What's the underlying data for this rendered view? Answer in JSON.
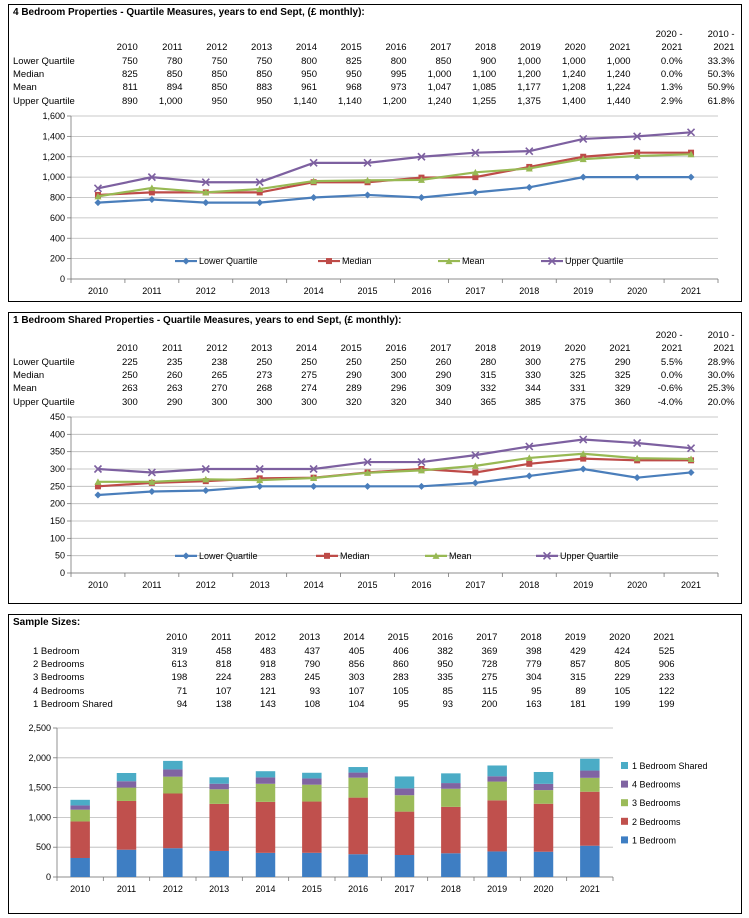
{
  "panel1": {
    "title": "4 Bedroom Properties - Quartile Measures, years to end Sept, (£ monthly):",
    "change_headers": [
      [
        "2020 -",
        "2021"
      ],
      [
        "2010 -",
        "2021"
      ]
    ],
    "years": [
      "2010",
      "2011",
      "2012",
      "2013",
      "2014",
      "2015",
      "2016",
      "2017",
      "2018",
      "2019",
      "2020",
      "2021"
    ],
    "rows": [
      {
        "label": "Lower Quartile",
        "values": [
          "750",
          "780",
          "750",
          "750",
          "800",
          "825",
          "800",
          "850",
          "900",
          "1,000",
          "1,000",
          "1,000"
        ],
        "changes": [
          "0.0%",
          "33.3%"
        ]
      },
      {
        "label": "Median",
        "values": [
          "825",
          "850",
          "850",
          "850",
          "950",
          "950",
          "995",
          "1,000",
          "1,100",
          "1,200",
          "1,240",
          "1,240"
        ],
        "changes": [
          "0.0%",
          "50.3%"
        ]
      },
      {
        "label": "Mean",
        "values": [
          "811",
          "894",
          "850",
          "883",
          "961",
          "968",
          "973",
          "1,047",
          "1,085",
          "1,177",
          "1,208",
          "1,224"
        ],
        "changes": [
          "1.3%",
          "50.9%"
        ]
      },
      {
        "label": "Upper Quartile",
        "values": [
          "890",
          "1,000",
          "950",
          "950",
          "1,140",
          "1,140",
          "1,200",
          "1,240",
          "1,255",
          "1,375",
          "1,400",
          "1,440"
        ],
        "changes": [
          "2.9%",
          "61.8%"
        ]
      }
    ]
  },
  "panel2": {
    "title": "1 Bedroom Shared Properties - Quartile Measures, years to end Sept, (£ monthly):",
    "change_headers": [
      [
        "2020 -",
        "2021"
      ],
      [
        "2010 -",
        "2021"
      ]
    ],
    "years": [
      "2010",
      "2011",
      "2012",
      "2013",
      "2014",
      "2015",
      "2016",
      "2017",
      "2018",
      "2019",
      "2020",
      "2021"
    ],
    "rows": [
      {
        "label": "Lower Quartile",
        "values": [
          "225",
          "235",
          "238",
          "250",
          "250",
          "250",
          "250",
          "260",
          "280",
          "300",
          "275",
          "290"
        ],
        "changes": [
          "5.5%",
          "28.9%"
        ]
      },
      {
        "label": "Median",
        "values": [
          "250",
          "260",
          "265",
          "273",
          "275",
          "290",
          "300",
          "290",
          "315",
          "330",
          "325",
          "325"
        ],
        "changes": [
          "0.0%",
          "30.0%"
        ]
      },
      {
        "label": "Mean",
        "values": [
          "263",
          "263",
          "270",
          "268",
          "274",
          "289",
          "296",
          "309",
          "332",
          "344",
          "331",
          "329"
        ],
        "changes": [
          "-0.6%",
          "25.3%"
        ]
      },
      {
        "label": "Upper Quartile",
        "values": [
          "300",
          "290",
          "300",
          "300",
          "300",
          "320",
          "320",
          "340",
          "365",
          "385",
          "375",
          "360"
        ],
        "changes": [
          "-4.0%",
          "20.0%"
        ]
      }
    ]
  },
  "panel3": {
    "title": "Sample Sizes:",
    "years": [
      "2010",
      "2011",
      "2012",
      "2013",
      "2014",
      "2015",
      "2016",
      "2017",
      "2018",
      "2019",
      "2020",
      "2021"
    ],
    "rows": [
      {
        "label": "1 Bedroom",
        "values": [
          "319",
          "458",
          "483",
          "437",
          "405",
          "406",
          "382",
          "369",
          "398",
          "429",
          "424",
          "525"
        ]
      },
      {
        "label": "2 Bedrooms",
        "values": [
          "613",
          "818",
          "918",
          "790",
          "856",
          "860",
          "950",
          "728",
          "779",
          "857",
          "805",
          "906"
        ]
      },
      {
        "label": "3 Bedrooms",
        "values": [
          "198",
          "224",
          "283",
          "245",
          "303",
          "283",
          "335",
          "275",
          "304",
          "315",
          "229",
          "233"
        ]
      },
      {
        "label": "4 Bedrooms",
        "values": [
          "71",
          "107",
          "121",
          "93",
          "107",
          "105",
          "85",
          "115",
          "95",
          "89",
          "105",
          "122"
        ]
      },
      {
        "label": "1 Bedroom Shared",
        "values": [
          "94",
          "138",
          "143",
          "108",
          "104",
          "95",
          "93",
          "200",
          "163",
          "181",
          "199",
          "199"
        ]
      }
    ]
  },
  "chart_data": [
    {
      "type": "line",
      "categories": [
        "2010",
        "2011",
        "2012",
        "2013",
        "2014",
        "2015",
        "2016",
        "2017",
        "2018",
        "2019",
        "2020",
        "2021"
      ],
      "ylim": [
        0,
        1600
      ],
      "yticks": [
        0,
        200,
        400,
        600,
        800,
        1000,
        1200,
        1400,
        1600
      ],
      "ytick_labels": [
        "0",
        "200",
        "400",
        "600",
        "800",
        "1,000",
        "1,200",
        "1,400",
        "1,600"
      ],
      "grid": true,
      "legend_position": "bottom-inside",
      "series": [
        {
          "name": "Lower Quartile",
          "color": "#4A7EBB",
          "marker": "diamond",
          "values": [
            750,
            780,
            750,
            750,
            800,
            825,
            800,
            850,
            900,
            1000,
            1000,
            1000
          ]
        },
        {
          "name": "Median",
          "color": "#BE4B48",
          "marker": "square",
          "values": [
            825,
            850,
            850,
            850,
            950,
            950,
            995,
            1000,
            1100,
            1200,
            1240,
            1240
          ]
        },
        {
          "name": "Mean",
          "color": "#98B954",
          "marker": "triangle",
          "values": [
            811,
            894,
            850,
            883,
            961,
            968,
            973,
            1047,
            1085,
            1177,
            1208,
            1224
          ]
        },
        {
          "name": "Upper Quartile",
          "color": "#7D60A0",
          "marker": "x",
          "values": [
            890,
            1000,
            950,
            950,
            1140,
            1140,
            1200,
            1240,
            1255,
            1375,
            1400,
            1440
          ]
        }
      ]
    },
    {
      "type": "line",
      "categories": [
        "2010",
        "2011",
        "2012",
        "2013",
        "2014",
        "2015",
        "2016",
        "2017",
        "2018",
        "2019",
        "2020",
        "2021"
      ],
      "ylim": [
        0,
        450
      ],
      "yticks": [
        0,
        50,
        100,
        150,
        200,
        250,
        300,
        350,
        400,
        450
      ],
      "ytick_labels": [
        "0",
        "50",
        "100",
        "150",
        "200",
        "250",
        "300",
        "350",
        "400",
        "450"
      ],
      "grid": true,
      "legend_position": "bottom-inside",
      "series": [
        {
          "name": "Lower Quartile",
          "color": "#4A7EBB",
          "marker": "diamond",
          "values": [
            225,
            235,
            238,
            250,
            250,
            250,
            250,
            260,
            280,
            300,
            275,
            290
          ]
        },
        {
          "name": "Median",
          "color": "#BE4B48",
          "marker": "square",
          "values": [
            250,
            260,
            265,
            273,
            275,
            290,
            300,
            290,
            315,
            330,
            325,
            325
          ]
        },
        {
          "name": "Mean",
          "color": "#98B954",
          "marker": "triangle",
          "values": [
            263,
            263,
            270,
            268,
            274,
            289,
            296,
            309,
            332,
            344,
            331,
            329
          ]
        },
        {
          "name": "Upper Quartile",
          "color": "#7D60A0",
          "marker": "x",
          "values": [
            300,
            290,
            300,
            300,
            300,
            320,
            320,
            340,
            365,
            385,
            375,
            360
          ]
        }
      ]
    },
    {
      "type": "bar",
      "stacked": true,
      "categories": [
        "2010",
        "2011",
        "2012",
        "2013",
        "2014",
        "2015",
        "2016",
        "2017",
        "2018",
        "2019",
        "2020",
        "2021"
      ],
      "ylim": [
        0,
        2500
      ],
      "yticks": [
        0,
        500,
        1000,
        1500,
        2000,
        2500
      ],
      "ytick_labels": [
        "0",
        "500",
        "1,000",
        "1,500",
        "2,000",
        "2,500"
      ],
      "grid": true,
      "legend_position": "right",
      "series": [
        {
          "name": "1 Bedroom",
          "color": "#3E7EC3",
          "values": [
            319,
            458,
            483,
            437,
            405,
            406,
            382,
            369,
            398,
            429,
            424,
            525
          ]
        },
        {
          "name": "2 Bedrooms",
          "color": "#C0504D",
          "values": [
            613,
            818,
            918,
            790,
            856,
            860,
            950,
            728,
            779,
            857,
            805,
            906
          ]
        },
        {
          "name": "3 Bedrooms",
          "color": "#9BBB59",
          "values": [
            198,
            224,
            283,
            245,
            303,
            283,
            335,
            275,
            304,
            315,
            229,
            233
          ]
        },
        {
          "name": "4 Bedrooms",
          "color": "#8064A2",
          "values": [
            71,
            107,
            121,
            93,
            107,
            105,
            85,
            115,
            95,
            89,
            105,
            122
          ]
        },
        {
          "name": "1 Bedroom Shared",
          "color": "#4BACC6",
          "values": [
            94,
            138,
            143,
            108,
            104,
            95,
            93,
            200,
            163,
            181,
            199,
            199
          ]
        }
      ]
    }
  ]
}
